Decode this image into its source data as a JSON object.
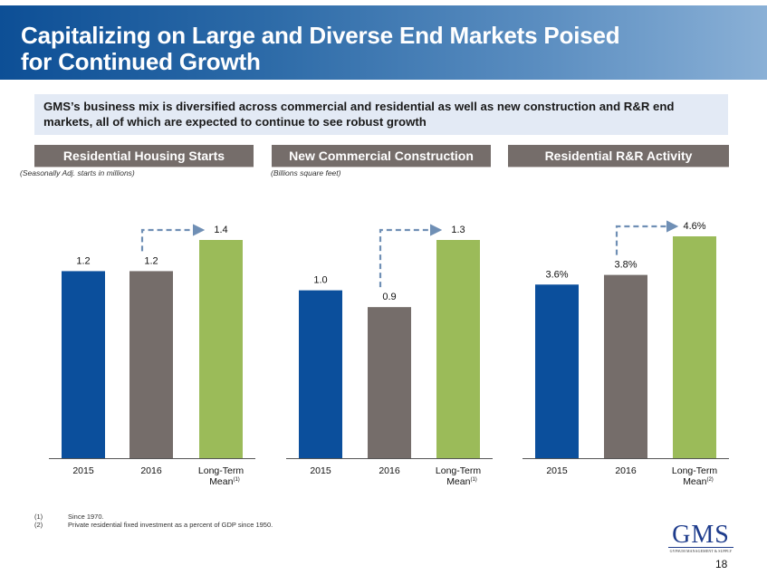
{
  "header": {
    "title_line1": "Capitalizing on Large and Diverse End Markets Poised",
    "title_line2": "for Continued Growth"
  },
  "summary": {
    "text": "GMS’s business mix is diversified across commercial and residential as well as new construction and R&R end markets, all of which are expected to continue to see robust growth"
  },
  "colors": {
    "bar_2015": "#0b4f9c",
    "bar_2016": "#756d6a",
    "bar_mean": "#9bbb59",
    "arrow": "#6f8fb5",
    "panel_header": "#756d6a"
  },
  "chart_data": [
    {
      "type": "bar",
      "title": "Residential Housing Starts",
      "subtitle": "(Seasonally Adj. starts in millions)",
      "categories": [
        "2015",
        "2016",
        "Long-Term Mean"
      ],
      "category_labels": [
        {
          "line1": "2015",
          "line2": "",
          "sup": ""
        },
        {
          "line1": "2016",
          "line2": "",
          "sup": ""
        },
        {
          "line1": "Long-Term",
          "line2": "Mean",
          "sup": "(1)"
        }
      ],
      "values": [
        1.2,
        1.2,
        1.4
      ],
      "data_labels": [
        "1.2",
        "1.2",
        "1.4"
      ],
      "annotation": "dashed arrow from 2016 to Long-Term Mean",
      "grid": false,
      "ylim": [
        0,
        1.4
      ]
    },
    {
      "type": "bar",
      "title": "New Commercial Construction",
      "subtitle": "(Billions square feet)",
      "categories": [
        "2015",
        "2016",
        "Long-Term Mean"
      ],
      "category_labels": [
        {
          "line1": "2015",
          "line2": "",
          "sup": ""
        },
        {
          "line1": "2016",
          "line2": "",
          "sup": ""
        },
        {
          "line1": "Long-Term",
          "line2": "Mean",
          "sup": "(1)"
        }
      ],
      "values": [
        1.0,
        0.9,
        1.3
      ],
      "data_labels": [
        "1.0",
        "0.9",
        "1.3"
      ],
      "annotation": "dashed arrow from 2016 to Long-Term Mean",
      "grid": false,
      "ylim": [
        0,
        1.3
      ]
    },
    {
      "type": "bar",
      "title": "Residential R&R Activity",
      "subtitle": "",
      "categories": [
        "2015",
        "2016",
        "Long-Term Mean"
      ],
      "category_labels": [
        {
          "line1": "2015",
          "line2": "",
          "sup": ""
        },
        {
          "line1": "2016",
          "line2": "",
          "sup": ""
        },
        {
          "line1": "Long-Term",
          "line2": "Mean",
          "sup": "(2)"
        }
      ],
      "values": [
        3.6,
        3.8,
        4.6
      ],
      "data_labels": [
        "3.6%",
        "3.8%",
        "4.6%"
      ],
      "annotation": "dashed arrow from 2016 to Long-Term Mean",
      "grid": false,
      "ylim": [
        0,
        4.6
      ]
    }
  ],
  "footnotes": [
    {
      "num": "(1)",
      "text": "Since 1970."
    },
    {
      "num": "(2)",
      "text": "Private residential fixed investment as a percent of GDP since  1950."
    }
  ],
  "logo": {
    "main": "GMS",
    "sub": "GYPSUM MANAGEMENT & SUPPLY"
  },
  "page_number": "18"
}
